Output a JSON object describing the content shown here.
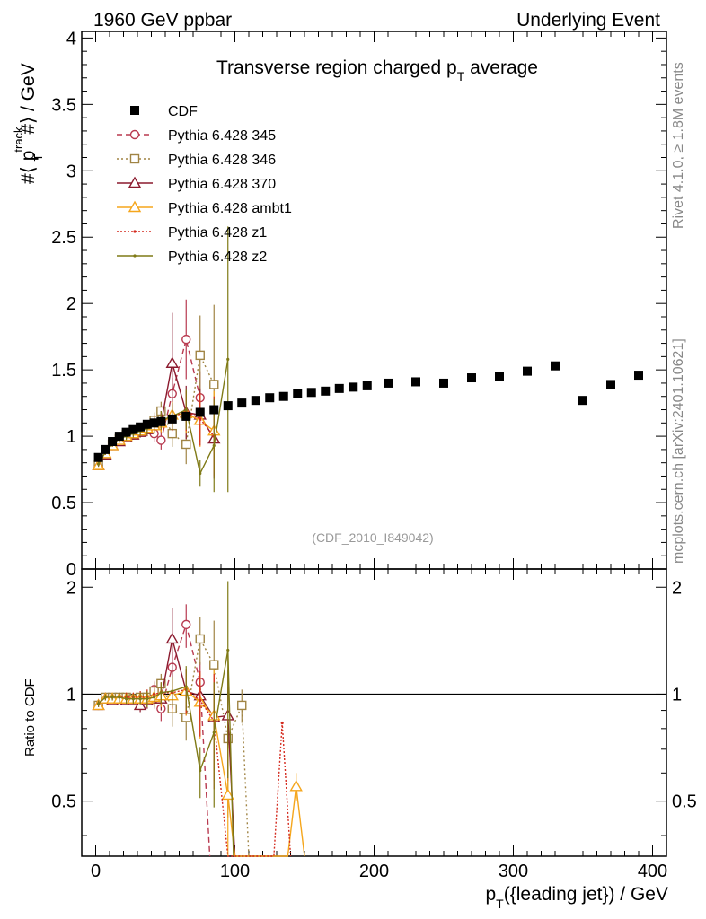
{
  "header": {
    "left": "1960 GeV ppbar",
    "right": "Underlying Event"
  },
  "side_labels": {
    "rivet": "Rivet 4.1.0, ≥ 1.8M events",
    "site": "mcplots.cern.ch [arXiv:2401.10621]"
  },
  "chart_data": {
    "type": "scatter",
    "title_main": "Transverse region charged p",
    "title_sub": "T",
    "title_end": " average",
    "analysis_label": "(CDF_2010_I849042)",
    "xlabel": {
      "main": "p",
      "sub": "T",
      "rest": "({leading jet}) / GeV"
    },
    "ylabel": {
      "pre": "#⟨ p",
      "sup": "track",
      "sub": "T",
      "post": " #⟩ / GeV"
    },
    "ratio_ylabel": "Ratio to CDF",
    "xlim": [
      -10,
      410
    ],
    "ylim": [
      0,
      4.05
    ],
    "ratio_ylim": [
      0.35,
      2.25
    ],
    "xticks": [
      "0",
      "100",
      "200",
      "300",
      "400"
    ],
    "xtick_values": [
      0,
      100,
      200,
      300,
      400
    ],
    "yticks": [
      "0",
      "0.5",
      "1",
      "1.5",
      "2",
      "2.5",
      "3",
      "3.5",
      "4"
    ],
    "ytick_values": [
      0,
      0.5,
      1,
      1.5,
      2,
      2.5,
      3,
      3.5,
      4
    ],
    "ratio_yticks": [
      "0.5",
      "1",
      "2"
    ],
    "ratio_ytick_values": [
      0.5,
      1,
      2
    ],
    "data": {
      "name": "CDF",
      "color": "#000000",
      "x": [
        2,
        7,
        12,
        17,
        22,
        27,
        32,
        37,
        42,
        47,
        55,
        65,
        75,
        85,
        95,
        105,
        115,
        125,
        135,
        145,
        155,
        165,
        175,
        185,
        195,
        210,
        230,
        250,
        270,
        290,
        310,
        330,
        350,
        370,
        390
      ],
      "y": [
        0.84,
        0.9,
        0.96,
        1.0,
        1.03,
        1.05,
        1.07,
        1.09,
        1.1,
        1.11,
        1.13,
        1.15,
        1.18,
        1.2,
        1.23,
        1.25,
        1.27,
        1.29,
        1.3,
        1.32,
        1.33,
        1.34,
        1.36,
        1.37,
        1.38,
        1.4,
        1.41,
        1.4,
        1.44,
        1.45,
        1.49,
        1.53,
        1.27,
        1.39,
        1.46
      ]
    },
    "series": [
      {
        "name": "Pythia 6.428 345",
        "color": "#b8394f",
        "dash": "6,4",
        "marker": "circle",
        "x": [
          2,
          7,
          12,
          17,
          22,
          27,
          32,
          37,
          42,
          47,
          55,
          65,
          75
        ],
        "y": [
          0.78,
          0.87,
          0.93,
          0.97,
          0.99,
          1.01,
          1.04,
          1.06,
          1.02,
          0.97,
          1.32,
          1.73,
          1.29
        ],
        "err": [
          0.02,
          0.02,
          0.02,
          0.03,
          0.03,
          0.03,
          0.04,
          0.05,
          0.06,
          0.07,
          0.12,
          0.3,
          0.2
        ],
        "ratio_x": [
          2,
          7,
          12,
          17,
          22,
          27,
          32,
          37,
          42,
          47,
          55,
          65,
          75,
          82
        ],
        "ratio": [
          0.93,
          0.97,
          0.97,
          0.97,
          0.96,
          0.96,
          0.97,
          0.97,
          1.03,
          0.91,
          1.19,
          1.57,
          1.08,
          0.3
        ],
        "ratio_err": [
          0.02,
          0.02,
          0.02,
          0.03,
          0.03,
          0.03,
          0.04,
          0.05,
          0.06,
          0.07,
          0.12,
          0.22,
          0.15,
          0.0
        ]
      },
      {
        "name": "Pythia 6.428 346",
        "color": "#a08444",
        "dash": "2,3",
        "marker": "square",
        "x": [
          2,
          7,
          12,
          17,
          22,
          27,
          32,
          37,
          42,
          47,
          55,
          65,
          75,
          85
        ],
        "y": [
          0.79,
          0.88,
          0.94,
          0.98,
          1.01,
          1.02,
          1.05,
          1.07,
          1.12,
          1.19,
          1.02,
          0.94,
          1.61,
          1.39
        ],
        "err": [
          0.02,
          0.02,
          0.02,
          0.03,
          0.03,
          0.03,
          0.04,
          0.05,
          0.06,
          0.07,
          0.1,
          0.15,
          0.3,
          0.6
        ],
        "ratio_x": [
          2,
          7,
          12,
          17,
          22,
          27,
          32,
          37,
          42,
          47,
          55,
          65,
          75,
          85,
          95,
          105,
          110
        ],
        "ratio": [
          0.93,
          0.98,
          0.98,
          0.98,
          0.98,
          0.97,
          0.98,
          0.98,
          1.02,
          1.07,
          0.91,
          0.86,
          1.43,
          1.21,
          0.75,
          0.93,
          0.3
        ],
        "ratio_err": [
          0.02,
          0.02,
          0.02,
          0.03,
          0.03,
          0.03,
          0.04,
          0.05,
          0.06,
          0.07,
          0.1,
          0.12,
          0.22,
          0.4,
          0.3,
          0.1,
          0.0
        ]
      },
      {
        "name": "Pythia 6.428 370",
        "color": "#8b1a2e",
        "dash": "",
        "marker": "triangle",
        "x": [
          2,
          7,
          12,
          17,
          22,
          27,
          32,
          37,
          42,
          47,
          55,
          65,
          75,
          85
        ],
        "y": [
          0.78,
          0.86,
          0.93,
          0.96,
          0.99,
          1.01,
          1.03,
          1.05,
          1.08,
          1.1,
          1.55,
          1.18,
          1.16,
          0.98
        ],
        "err": [
          0.02,
          0.02,
          0.02,
          0.03,
          0.03,
          0.03,
          0.04,
          0.05,
          0.06,
          0.07,
          0.38,
          0.2,
          0.2,
          0.3
        ],
        "ratio_x": [
          2,
          7,
          12,
          17,
          22,
          27,
          32,
          37,
          42,
          47,
          55,
          65,
          75,
          85,
          95,
          100
        ],
        "ratio": [
          0.93,
          0.97,
          0.96,
          0.97,
          0.96,
          0.96,
          0.93,
          0.96,
          0.97,
          0.97,
          1.43,
          1.02,
          0.99,
          0.86,
          0.87,
          0.3
        ],
        "ratio_err": [
          0.02,
          0.02,
          0.02,
          0.03,
          0.03,
          0.03,
          0.04,
          0.05,
          0.06,
          0.07,
          0.32,
          0.15,
          0.15,
          0.25,
          0.3,
          0.0
        ]
      },
      {
        "name": "Pythia 6.428 ambt1",
        "color": "#f5a61c",
        "dash": "",
        "marker": "triangle",
        "x": [
          2,
          7,
          12,
          17,
          22,
          27,
          32,
          37,
          42,
          47,
          55,
          65,
          75,
          85
        ],
        "y": [
          0.78,
          0.87,
          0.93,
          0.97,
          1.0,
          1.02,
          1.04,
          1.06,
          1.08,
          1.1,
          1.16,
          1.17,
          1.12,
          1.04
        ],
        "err": [
          0.02,
          0.02,
          0.02,
          0.03,
          0.03,
          0.03,
          0.04,
          0.05,
          0.06,
          0.07,
          0.1,
          0.15,
          0.2,
          0.3
        ],
        "ratio_x": [
          2,
          7,
          12,
          17,
          22,
          27,
          32,
          37,
          42,
          47,
          55,
          65,
          75,
          85,
          95,
          100,
          138,
          144,
          150
        ],
        "ratio": [
          0.93,
          0.97,
          0.97,
          0.97,
          0.97,
          0.97,
          0.97,
          0.97,
          0.98,
          0.99,
          0.99,
          1.02,
          0.95,
          0.87,
          0.52,
          0.3,
          0.3,
          0.55,
          0.3
        ],
        "ratio_err": [
          0.02,
          0.02,
          0.02,
          0.03,
          0.03,
          0.03,
          0.04,
          0.05,
          0.06,
          0.07,
          0.1,
          0.15,
          0.2,
          0.3,
          0.2,
          0.0,
          0.0,
          0.05,
          0.0
        ]
      },
      {
        "name": "Pythia 6.428 z1",
        "color": "#d42a1e",
        "dash": "2,2",
        "marker": "dot",
        "x": [
          2,
          7,
          12,
          17,
          22,
          27,
          32,
          37,
          42,
          47,
          55,
          65,
          75,
          85
        ],
        "y": [
          0.79,
          0.88,
          0.94,
          0.98,
          1.01,
          1.03,
          1.05,
          1.07,
          1.1,
          1.12,
          1.14,
          1.19,
          1.13,
          1.0
        ],
        "err": [
          0.02,
          0.02,
          0.02,
          0.03,
          0.03,
          0.03,
          0.04,
          0.05,
          0.06,
          0.07,
          0.1,
          0.15,
          0.2,
          0.3
        ],
        "ratio_x": [
          2,
          7,
          12,
          17,
          22,
          27,
          32,
          37,
          42,
          47,
          55,
          65,
          75,
          85,
          95,
          128,
          134,
          140
        ],
        "ratio": [
          0.94,
          0.98,
          0.98,
          0.98,
          0.98,
          0.98,
          0.98,
          0.98,
          1.0,
          1.01,
          1.01,
          1.03,
          0.96,
          0.84,
          0.3,
          0.3,
          0.83,
          0.3
        ],
        "ratio_err": [
          0.02,
          0.02,
          0.02,
          0.03,
          0.03,
          0.03,
          0.04,
          0.05,
          0.06,
          0.07,
          0.1,
          0.15,
          0.2,
          0.3,
          0.0,
          0.0,
          0.0,
          0.0
        ]
      },
      {
        "name": "Pythia 6.428 z2",
        "color": "#7f7a16",
        "dash": "",
        "marker": "dot",
        "x": [
          2,
          7,
          12,
          17,
          22,
          27,
          32,
          37,
          42,
          47,
          55,
          65,
          75,
          85,
          95
        ],
        "y": [
          0.79,
          0.88,
          0.94,
          0.98,
          1.0,
          1.02,
          1.04,
          1.06,
          1.08,
          1.12,
          1.15,
          1.2,
          0.72,
          0.93,
          1.58
        ],
        "err": [
          0.02,
          0.02,
          0.02,
          0.03,
          0.03,
          0.03,
          0.04,
          0.05,
          0.06,
          0.07,
          0.1,
          0.15,
          0.1,
          0.35,
          1.0
        ],
        "ratio_x": [
          2,
          7,
          12,
          17,
          22,
          27,
          32,
          37,
          42,
          47,
          55,
          65,
          75,
          85,
          95,
          99
        ],
        "ratio": [
          0.94,
          0.98,
          0.98,
          0.98,
          0.97,
          0.97,
          0.97,
          0.97,
          0.98,
          1.01,
          1.02,
          1.05,
          0.61,
          0.78,
          1.33,
          0.3
        ],
        "ratio_err": [
          0.02,
          0.02,
          0.02,
          0.03,
          0.03,
          0.03,
          0.04,
          0.05,
          0.06,
          0.07,
          0.1,
          0.15,
          0.1,
          0.3,
          0.75,
          0.0
        ]
      }
    ]
  }
}
